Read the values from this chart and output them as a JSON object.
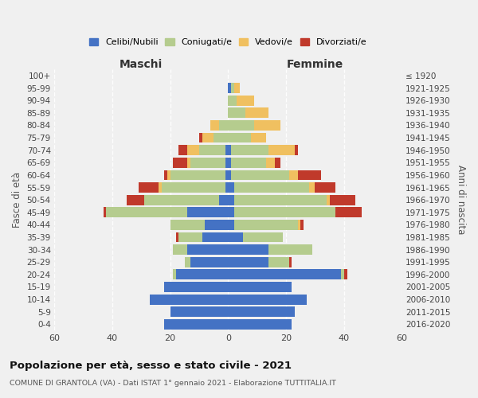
{
  "age_groups": [
    "0-4",
    "5-9",
    "10-14",
    "15-19",
    "20-24",
    "25-29",
    "30-34",
    "35-39",
    "40-44",
    "45-49",
    "50-54",
    "55-59",
    "60-64",
    "65-69",
    "70-74",
    "75-79",
    "80-84",
    "85-89",
    "90-94",
    "95-99",
    "100+"
  ],
  "birth_years": [
    "2016-2020",
    "2011-2015",
    "2006-2010",
    "2001-2005",
    "1996-2000",
    "1991-1995",
    "1986-1990",
    "1981-1985",
    "1976-1980",
    "1971-1975",
    "1966-1970",
    "1961-1965",
    "1956-1960",
    "1951-1955",
    "1946-1950",
    "1941-1945",
    "1936-1940",
    "1931-1935",
    "1926-1930",
    "1921-1925",
    "≤ 1920"
  ],
  "male": {
    "celibe": [
      22,
      20,
      27,
      22,
      18,
      13,
      14,
      9,
      8,
      14,
      3,
      1,
      1,
      1,
      1,
      0,
      0,
      0,
      0,
      0,
      0
    ],
    "coniugato": [
      0,
      0,
      0,
      0,
      1,
      2,
      5,
      8,
      12,
      28,
      26,
      22,
      19,
      12,
      9,
      5,
      3,
      0,
      0,
      0,
      0
    ],
    "vedovo": [
      0,
      0,
      0,
      0,
      0,
      0,
      0,
      0,
      0,
      0,
      0,
      1,
      1,
      1,
      4,
      4,
      3,
      0,
      0,
      0,
      0
    ],
    "divorziato": [
      0,
      0,
      0,
      0,
      0,
      0,
      0,
      1,
      0,
      1,
      6,
      7,
      1,
      5,
      3,
      1,
      0,
      0,
      0,
      0,
      0
    ]
  },
  "female": {
    "nubile": [
      22,
      23,
      27,
      22,
      39,
      14,
      14,
      5,
      2,
      2,
      2,
      2,
      1,
      1,
      1,
      0,
      0,
      0,
      0,
      1,
      0
    ],
    "coniugata": [
      0,
      0,
      0,
      0,
      1,
      7,
      15,
      14,
      22,
      35,
      32,
      26,
      20,
      12,
      13,
      8,
      9,
      6,
      3,
      1,
      0
    ],
    "vedova": [
      0,
      0,
      0,
      0,
      0,
      0,
      0,
      0,
      1,
      0,
      1,
      2,
      3,
      3,
      9,
      5,
      9,
      8,
      6,
      2,
      0
    ],
    "divorziata": [
      0,
      0,
      0,
      0,
      1,
      1,
      0,
      0,
      1,
      9,
      9,
      7,
      8,
      2,
      1,
      0,
      0,
      0,
      0,
      0,
      0
    ]
  },
  "colors": {
    "celibe": "#4472c4",
    "coniugato": "#b5cc8e",
    "vedovo": "#f0c060",
    "divorziato": "#c0392b"
  },
  "title": "Popolazione per età, sesso e stato civile - 2021",
  "subtitle": "COMUNE DI GRANTOLA (VA) - Dati ISTAT 1° gennaio 2021 - Elaborazione TUTTITALIA.IT",
  "xlim": 60,
  "xlabel_left": "Maschi",
  "xlabel_right": "Femmine",
  "ylabel_left": "Fasce di età",
  "ylabel_right": "Anni di nascita",
  "legend_labels": [
    "Celibi/Nubili",
    "Coniugati/e",
    "Vedovi/e",
    "Divorziati/e"
  ],
  "background_color": "#f0f0f0"
}
